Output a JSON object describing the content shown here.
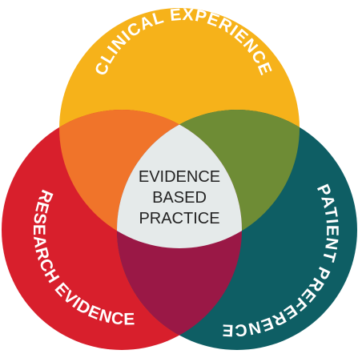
{
  "diagram": {
    "circles": [
      {
        "id": "clinical",
        "label": "CLINICAL EXPERIENCE",
        "color": "#F6B21A"
      },
      {
        "id": "research",
        "label": "RESEARCH EVIDENCE",
        "color": "#D81F2C"
      },
      {
        "id": "patient",
        "label": "PATIENT PREFERENCE",
        "color": "#0E5E64"
      }
    ],
    "overlaps": {
      "clinical_research": "#F0742A",
      "clinical_patient": "#6E8C35",
      "research_patient": "#9A1846",
      "center": "#E5EAEA"
    },
    "center": {
      "lines": [
        "EVIDENCE",
        "BASED",
        "PRACTICE"
      ]
    }
  }
}
